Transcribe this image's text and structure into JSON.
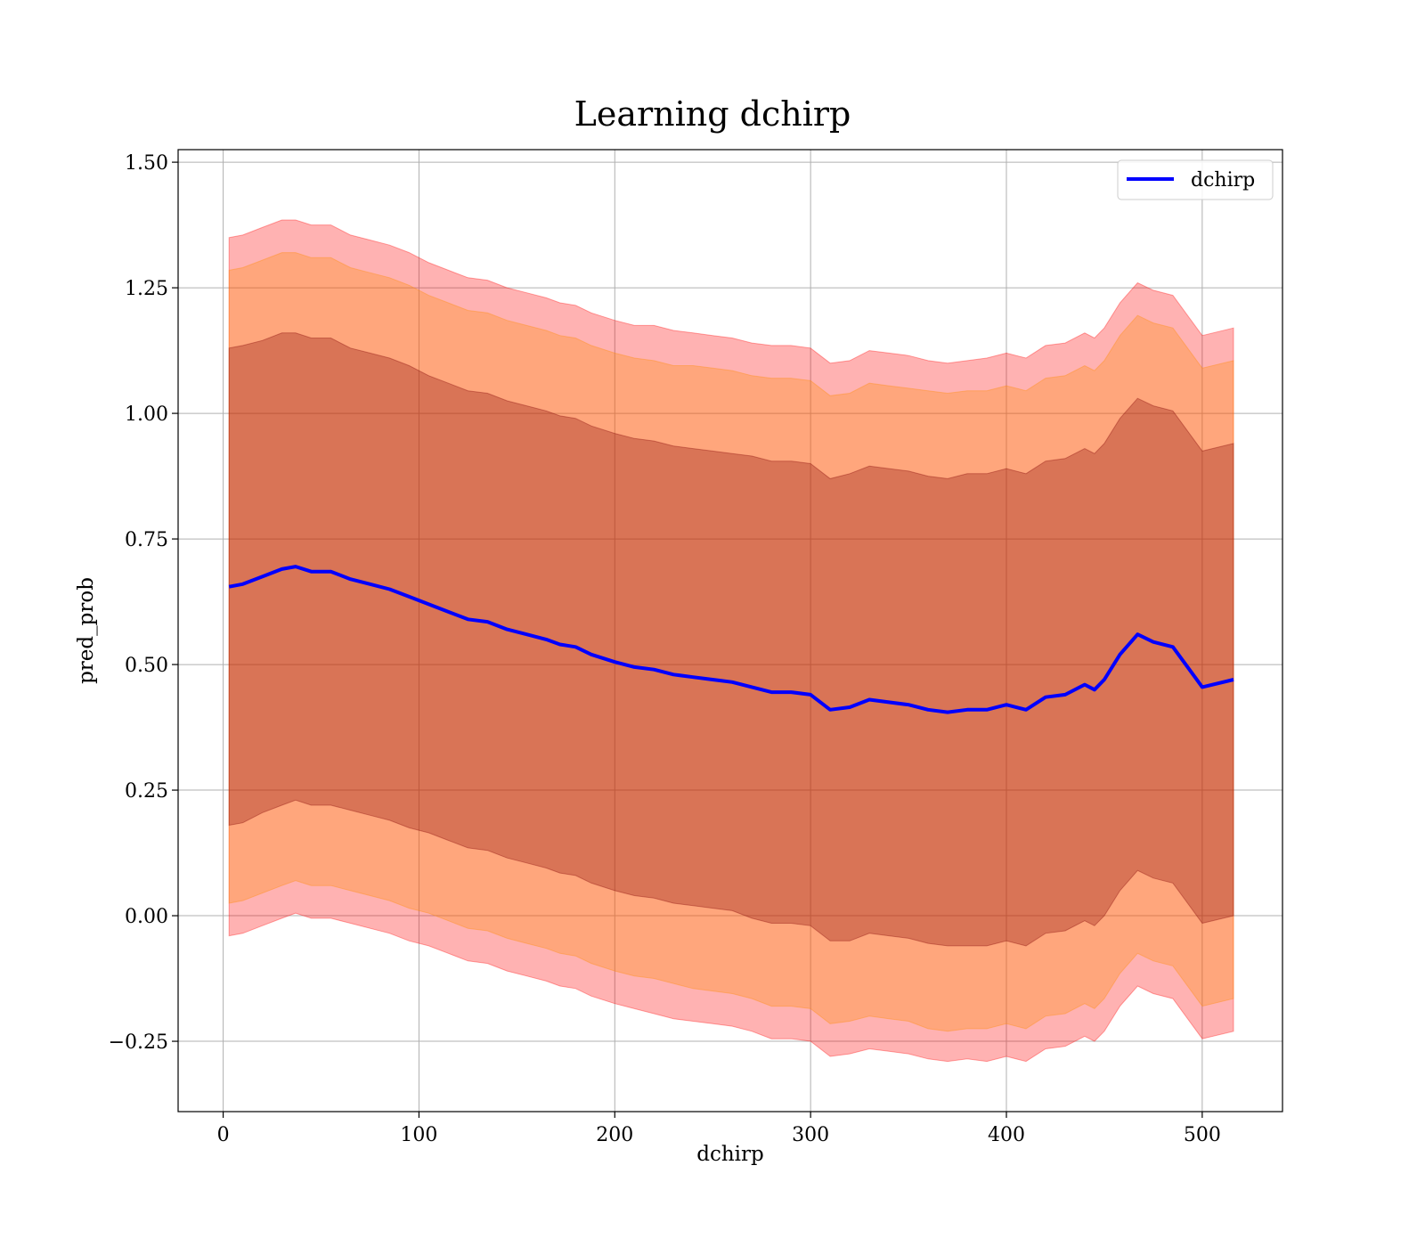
{
  "chart_data": {
    "type": "line",
    "title": "Learning dchirp",
    "xlabel": "dchirp",
    "ylabel": "pred_prob",
    "xlim": [
      -23,
      541
    ],
    "ylim": [
      -0.39,
      1.525
    ],
    "xticks": [
      0,
      100,
      200,
      300,
      400,
      500
    ],
    "yticks": [
      -0.25,
      0.0,
      0.25,
      0.5,
      0.75,
      1.0,
      1.25,
      1.5
    ],
    "xtick_labels": [
      "0",
      "100",
      "200",
      "300",
      "400",
      "500"
    ],
    "ytick_labels": [
      "−0.25",
      "0.00",
      "0.25",
      "0.50",
      "0.75",
      "1.00",
      "1.25",
      "1.50"
    ],
    "grid": true,
    "legend": {
      "position": "top-right",
      "entries": [
        "dchirp"
      ]
    },
    "series": [
      {
        "name": "dchirp",
        "color": "#0000ff",
        "x": [
          3,
          10,
          20,
          30,
          37,
          45,
          55,
          65,
          75,
          85,
          95,
          105,
          115,
          125,
          135,
          145,
          155,
          165,
          172,
          180,
          188,
          200,
          210,
          220,
          230,
          240,
          250,
          260,
          270,
          280,
          290,
          300,
          310,
          320,
          330,
          340,
          350,
          360,
          370,
          380,
          390,
          400,
          410,
          420,
          430,
          440,
          445,
          450,
          458,
          467,
          475,
          485,
          500,
          516
        ],
        "y": [
          0.655,
          0.66,
          0.675,
          0.69,
          0.695,
          0.685,
          0.685,
          0.67,
          0.66,
          0.65,
          0.635,
          0.62,
          0.605,
          0.59,
          0.585,
          0.57,
          0.56,
          0.55,
          0.54,
          0.535,
          0.52,
          0.505,
          0.495,
          0.49,
          0.48,
          0.475,
          0.47,
          0.465,
          0.455,
          0.445,
          0.445,
          0.44,
          0.41,
          0.415,
          0.43,
          0.425,
          0.42,
          0.41,
          0.405,
          0.41,
          0.41,
          0.42,
          0.41,
          0.435,
          0.44,
          0.46,
          0.45,
          0.47,
          0.52,
          0.56,
          0.545,
          0.535,
          0.455,
          0.47
        ],
        "band_inner": {
          "color": "#800000",
          "offset": [
            0.475,
            0.475,
            0.47,
            0.47,
            0.465,
            0.465,
            0.465,
            0.46,
            0.46,
            0.46,
            0.46,
            0.455,
            0.455,
            0.455,
            0.455,
            0.455,
            0.455,
            0.455,
            0.455,
            0.455,
            0.455,
            0.455,
            0.455,
            0.455,
            0.455,
            0.455,
            0.455,
            0.455,
            0.46,
            0.46,
            0.46,
            0.46,
            0.46,
            0.465,
            0.465,
            0.465,
            0.465,
            0.465,
            0.465,
            0.47,
            0.47,
            0.47,
            0.47,
            0.47,
            0.47,
            0.47,
            0.47,
            0.47,
            0.47,
            0.47,
            0.47,
            0.47,
            0.47,
            0.47
          ]
        },
        "band_middle": {
          "color": "#ff8c00",
          "offset": [
            0.63,
            0.63,
            0.63,
            0.63,
            0.625,
            0.625,
            0.625,
            0.62,
            0.62,
            0.62,
            0.62,
            0.615,
            0.615,
            0.615,
            0.615,
            0.615,
            0.615,
            0.615,
            0.615,
            0.615,
            0.615,
            0.615,
            0.615,
            0.615,
            0.615,
            0.62,
            0.62,
            0.62,
            0.62,
            0.625,
            0.625,
            0.625,
            0.625,
            0.625,
            0.63,
            0.63,
            0.63,
            0.635,
            0.635,
            0.635,
            0.635,
            0.635,
            0.635,
            0.635,
            0.635,
            0.635,
            0.635,
            0.635,
            0.635,
            0.635,
            0.635,
            0.635,
            0.635,
            0.635
          ]
        },
        "band_outer": {
          "color": "#ff0000",
          "offset": [
            0.695,
            0.695,
            0.695,
            0.695,
            0.69,
            0.69,
            0.69,
            0.685,
            0.685,
            0.685,
            0.685,
            0.68,
            0.68,
            0.68,
            0.68,
            0.68,
            0.68,
            0.68,
            0.68,
            0.68,
            0.68,
            0.68,
            0.68,
            0.685,
            0.685,
            0.685,
            0.685,
            0.685,
            0.685,
            0.69,
            0.69,
            0.69,
            0.69,
            0.69,
            0.695,
            0.695,
            0.695,
            0.695,
            0.695,
            0.695,
            0.7,
            0.7,
            0.7,
            0.7,
            0.7,
            0.7,
            0.7,
            0.7,
            0.7,
            0.7,
            0.7,
            0.7,
            0.7,
            0.7
          ]
        }
      }
    ]
  }
}
